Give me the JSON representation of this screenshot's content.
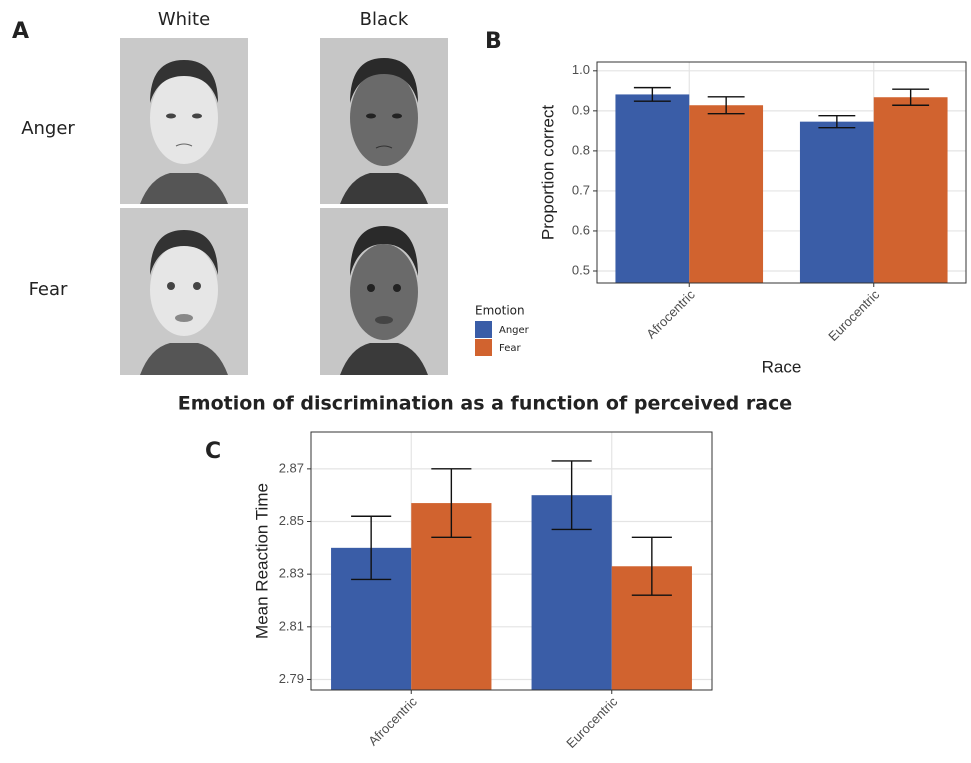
{
  "panel_a": {
    "letter": "A",
    "columns": [
      "White",
      "Black"
    ],
    "rows": [
      "Anger",
      "Fear"
    ]
  },
  "figure_title": "Emotion of discrimination as a function of perceived race",
  "chart_data": [
    {
      "type": "bar",
      "panel": "B",
      "categories": [
        "Afrocentric",
        "Eurocentric"
      ],
      "series": [
        {
          "name": "Anger",
          "color": "#3a5da7",
          "values": [
            0.941,
            0.873
          ],
          "errors": [
            0.017,
            0.015
          ]
        },
        {
          "name": "Fear",
          "color": "#d1632f",
          "values": [
            0.914,
            0.934
          ],
          "errors": [
            0.021,
            0.02
          ]
        }
      ],
      "ylim": [
        0.47,
        1.022
      ],
      "yticks": [
        0.5,
        0.6,
        0.7,
        0.8,
        0.9,
        {
          "value": 1,
          "label": "1.0"
        }
      ],
      "ylabel": "Proportion correct",
      "xlabel": "Race",
      "grid": true,
      "legend": "left",
      "legend_title": "Emotion"
    },
    {
      "type": "bar",
      "panel": "C",
      "categories": [
        "Afrocentric",
        "Eurocentric"
      ],
      "series": [
        {
          "name": "Anger",
          "color": "#3a5da7",
          "values": [
            2.84,
            2.86
          ],
          "errors": [
            0.012,
            0.013
          ]
        },
        {
          "name": "Fear",
          "color": "#d1632f",
          "values": [
            2.857,
            2.833
          ],
          "errors": [
            0.013,
            0.011
          ]
        }
      ],
      "ylim": [
        2.786,
        2.884
      ],
      "yticks": [
        2.79,
        2.81,
        2.83,
        2.85,
        2.87
      ],
      "ylabel": "Mean Reaction Time",
      "grid": true,
      "legend": false
    }
  ]
}
